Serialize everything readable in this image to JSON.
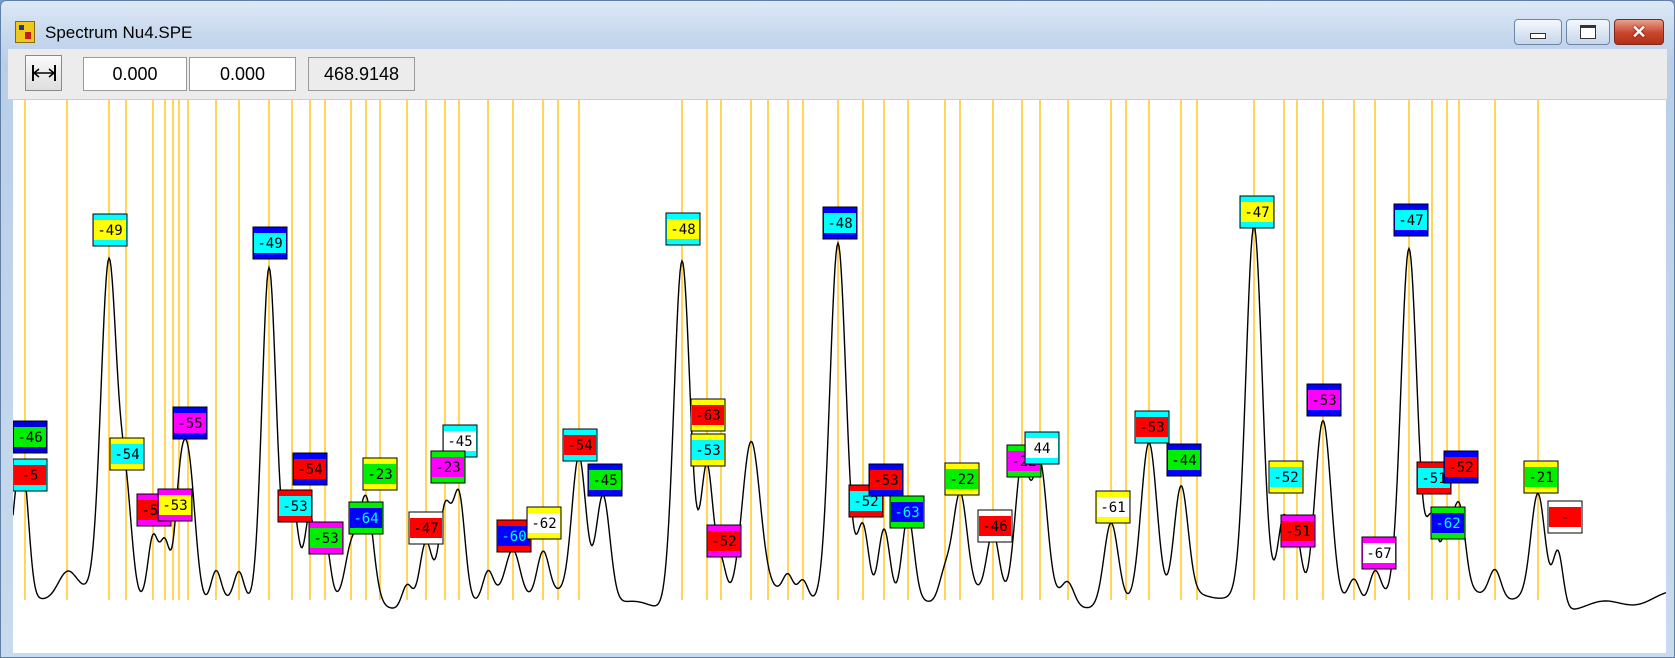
{
  "window": {
    "title": "Spectrum Nu4.SPE"
  },
  "toolbar": {
    "range_start": "0.000",
    "range_end": "0.000",
    "readout": "468.9148"
  },
  "icons": {
    "app": "spectrum-app-icon",
    "fit": "fit-width-icon",
    "min": "minimize-icon",
    "max": "maximize-icon",
    "close": "close-icon"
  },
  "colors": {
    "marker_line": "#ffc000",
    "trace": "#000000"
  },
  "peak_labels": [
    {
      "text": "-46",
      "bg": "#00ee00",
      "bar": "#0000dd"
    },
    {
      "text": "-5",
      "bg": "#ff0000",
      "bar": "#00ffff"
    },
    {
      "text": "-49",
      "bg": "#ffff00",
      "bar": "#00ffff"
    },
    {
      "text": "-54",
      "bg": "#00ffff",
      "bar": "#ffff00"
    },
    {
      "text": "-53",
      "bg": "#ff0000",
      "bar": "#ff00ff"
    },
    {
      "text": "-53",
      "bg": "#ffff00",
      "bar": "#ff00ff"
    },
    {
      "text": "-55",
      "bg": "#ff00ff",
      "bar": "#0000ff"
    },
    {
      "text": "-49",
      "bg": "#00ffff",
      "bar": "#0000ff"
    },
    {
      "text": "-54",
      "bg": "#ff0000",
      "bar": "#0000ff"
    },
    {
      "text": "-53",
      "bg": "#00ffff",
      "bar": "#ff0000"
    },
    {
      "text": "-53",
      "bg": "#00ee00",
      "bar": "#ff00ff"
    },
    {
      "text": "-64",
      "bg": "#0000ff",
      "bar": "#00ee00"
    },
    {
      "text": "-23",
      "bg": "#00ee00",
      "bar": "#ffff00"
    },
    {
      "text": "-47",
      "bg": "#ff0000",
      "bar": "#ffffff"
    },
    {
      "text": "-45",
      "bg": "#ffffff",
      "bar": "#00ffff"
    },
    {
      "text": "-23",
      "bg": "#ff00ff",
      "bar": "#00ee00"
    },
    {
      "text": "-60",
      "bg": "#0000ff",
      "bar": "#ff0000"
    },
    {
      "text": "-62",
      "bg": "#ffffff",
      "bar": "#ffff00"
    },
    {
      "text": "-54",
      "bg": "#ff0000",
      "bar": "#00ffff"
    },
    {
      "text": "-45",
      "bg": "#00ee00",
      "bar": "#0000ff"
    },
    {
      "text": "-48",
      "bg": "#ffff00",
      "bar": "#00ffff"
    },
    {
      "text": "-63",
      "bg": "#ff0000",
      "bar": "#ffff00"
    },
    {
      "text": "-53",
      "bg": "#00ffff",
      "bar": "#ffff00"
    },
    {
      "text": "-52",
      "bg": "#ff0000",
      "bar": "#ff00ff"
    },
    {
      "text": "-48",
      "bg": "#00ffff",
      "bar": "#0000ff"
    },
    {
      "text": "-52",
      "bg": "#00ffff",
      "bar": "#ff0000"
    },
    {
      "text": "-53",
      "bg": "#ff0000",
      "bar": "#0000ff"
    },
    {
      "text": "-63",
      "bg": "#0000ff",
      "bar": "#00ee00"
    },
    {
      "text": "-22",
      "bg": "#00ee00",
      "bar": "#ffff00"
    },
    {
      "text": "-46",
      "bg": "#ff0000",
      "bar": "#ffffff"
    },
    {
      "text": "-22",
      "bg": "#ff00ff",
      "bar": "#00ee00"
    },
    {
      "text": "44",
      "bg": "#ffffff",
      "bar": "#00ffff"
    },
    {
      "text": "-61",
      "bg": "#ffffff",
      "bar": "#ffff00"
    },
    {
      "text": "-53",
      "bg": "#ff0000",
      "bar": "#00ffff"
    },
    {
      "text": "-44",
      "bg": "#00ee00",
      "bar": "#0000ff"
    },
    {
      "text": "-47",
      "bg": "#ffff00",
      "bar": "#00ffff"
    },
    {
      "text": "-52",
      "bg": "#00ffff",
      "bar": "#ffff00"
    },
    {
      "text": "-51",
      "bg": "#ff0000",
      "bar": "#ff00ff"
    },
    {
      "text": "-53",
      "bg": "#ff00ff",
      "bar": "#0000ff"
    },
    {
      "text": "-67",
      "bg": "#ffffff",
      "bar": "#ff00ff"
    },
    {
      "text": "-47",
      "bg": "#00ffff",
      "bar": "#0000ff"
    },
    {
      "text": "-51",
      "bg": "#00ffff",
      "bar": "#ff0000"
    },
    {
      "text": "-52",
      "bg": "#ff0000",
      "bar": "#0000ff"
    },
    {
      "text": "-62",
      "bg": "#0000ff",
      "bar": "#00ee00"
    },
    {
      "text": "-21",
      "bg": "#00ee00",
      "bar": "#ffff00"
    },
    {
      "text": "-",
      "bg": "#ff0000",
      "bar": "#ffffff"
    }
  ]
}
